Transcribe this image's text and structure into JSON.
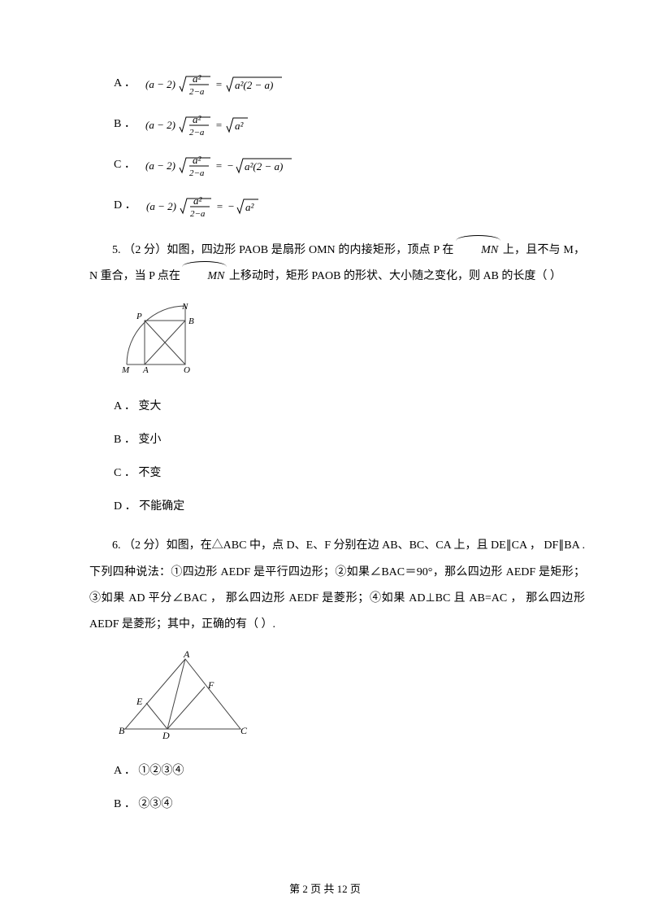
{
  "q4": {
    "opts": {
      "A": {
        "label": "A ．",
        "lhs_paren": "(a − 2)",
        "frac_num": "a²",
        "frac_den": "2−a",
        "rhs_sign": "",
        "rhs_inside": "a²(2 − a)"
      },
      "B": {
        "label": "B ．",
        "lhs_paren": "(a − 2)",
        "frac_num": "a²",
        "frac_den": "2−a",
        "rhs_sign": "",
        "rhs_inside": "a²"
      },
      "C": {
        "label": "C ．",
        "lhs_paren": "(a − 2)",
        "frac_num": "a²",
        "frac_den": "2−a",
        "rhs_sign": "−",
        "rhs_inside": "a²(2 − a)"
      },
      "D": {
        "label": "D ．",
        "lhs_paren": "(a − 2)",
        "frac_num": "a²",
        "frac_den": "2−a",
        "rhs_sign": "−",
        "rhs_inside": "a²"
      }
    }
  },
  "q5": {
    "text_a": "5.   （2 分）如图，四边形 PAOB 是扇形 OMN 的内接矩形，顶点 P 在 ",
    "text_b": " 上，且不与 M，N 重合，当 P 点在 ",
    "text_c": " 上移动时，矩形 PAOB 的形状、大小随之变化，则 AB 的长度（    ）",
    "mn": "MN",
    "fig": {
      "M": "M",
      "A": "A",
      "O": "O",
      "P": "P",
      "B": "B",
      "N": "N"
    },
    "ans": {
      "A": "A ． 变大",
      "B": "B ． 变小",
      "C": "C ． 不变",
      "D": "D ． 不能确定"
    }
  },
  "q6": {
    "text": "6.   （2 分）如图，在△ABC 中，点 D、E、F 分别在边 AB、BC、CA 上，且 DE∥CA    ，  DF∥BA    .    下列四种说法：①四边形 AEDF 是平行四边形；②如果∠BAC＝90°，那么四边形 AEDF 是矩形；③如果 AD 平分∠BAC    ，    那么四边形 AEDF 是菱形；④如果 AD⊥BC 且 AB=AC ，  那么四边形 AEDF 是菱形；其中，正确的有（    ）.",
    "fig": {
      "A": "A",
      "B": "B",
      "C": "C",
      "D": "D",
      "E": "E",
      "F": "F"
    },
    "ans": {
      "A": "A ． ①②③④",
      "B": "B ． ②③④"
    }
  },
  "footer": "第 2 页 共 12 页",
  "style": {
    "fg": "#000000",
    "bg": "#ffffff",
    "eq_font": "italic 13px Times New Roman, serif",
    "fig_stroke": "#444",
    "fig_label_font": "italic 11px Times New Roman, serif"
  }
}
